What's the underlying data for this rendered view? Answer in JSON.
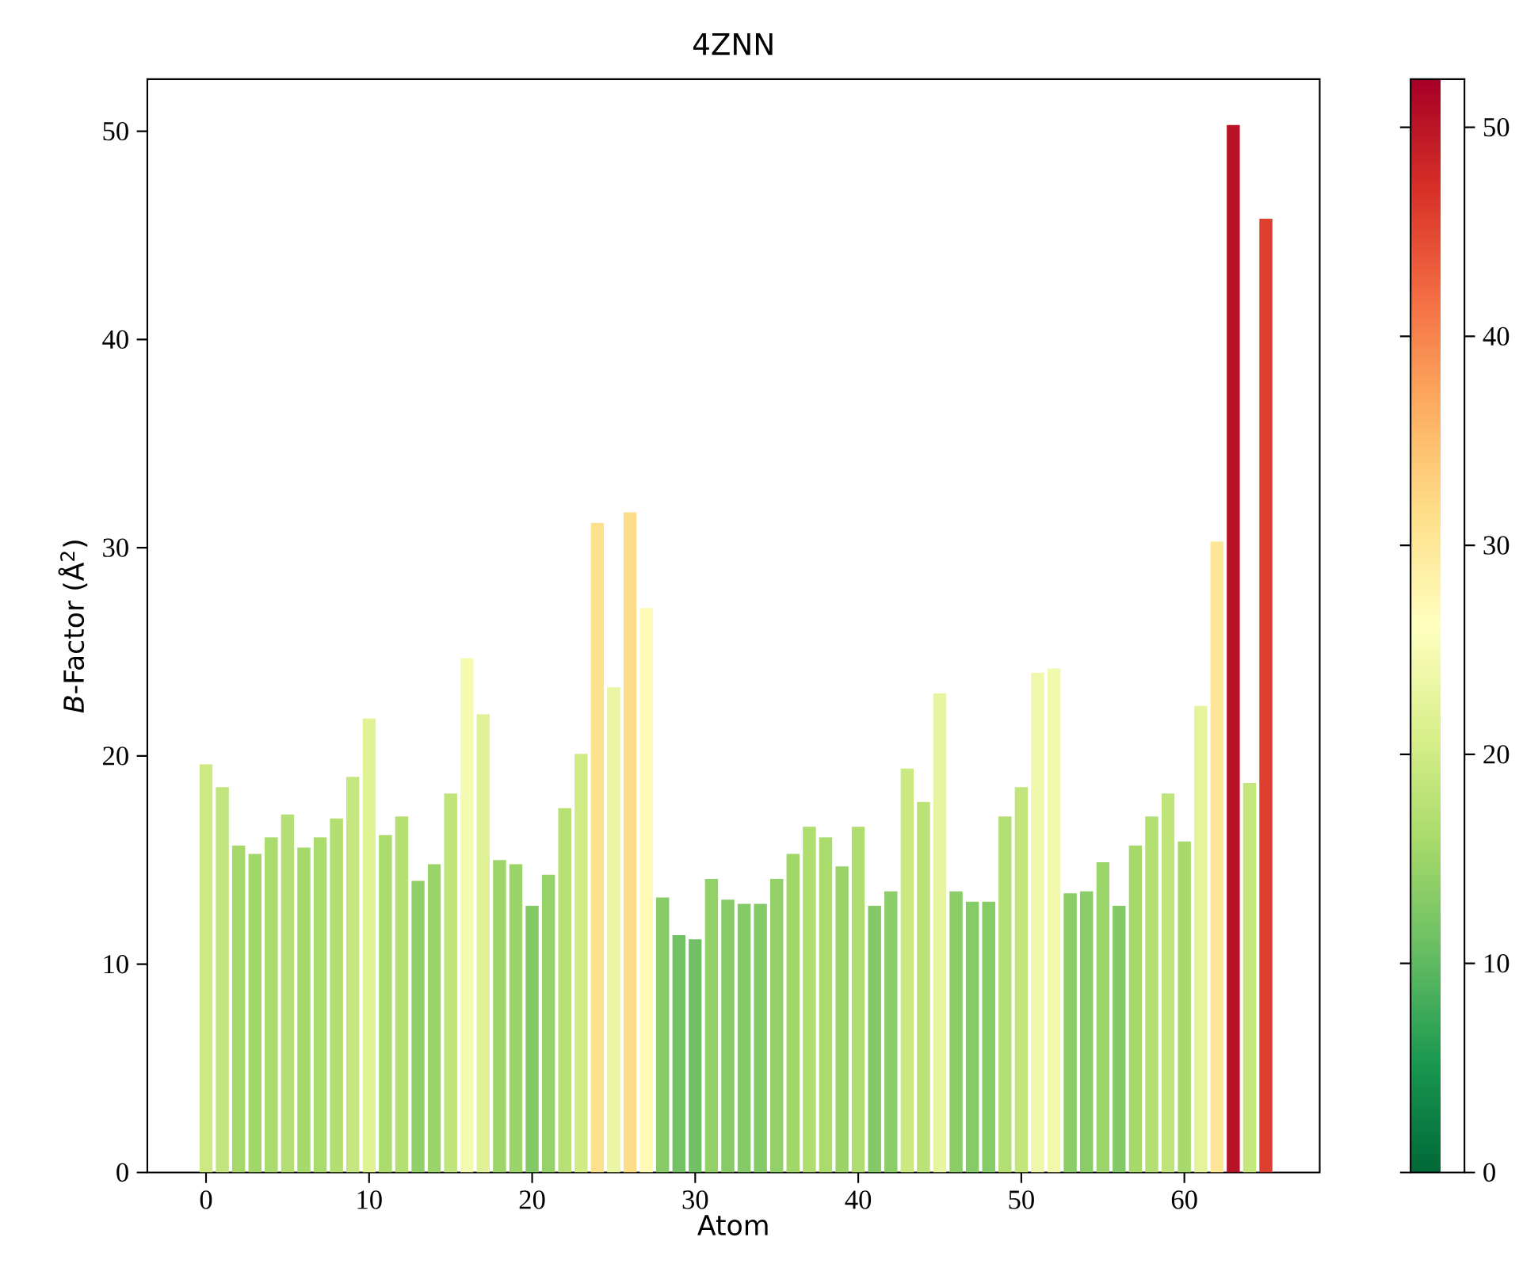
{
  "chart_data": {
    "type": "bar",
    "title": "4ZNN",
    "xlabel": "Atom",
    "ylabel": "*B*-Factor (Å$^{2}$)",
    "x": [
      0,
      1,
      2,
      3,
      4,
      5,
      6,
      7,
      8,
      9,
      10,
      11,
      12,
      13,
      14,
      15,
      16,
      17,
      18,
      19,
      20,
      21,
      22,
      23,
      24,
      25,
      26,
      27,
      28,
      29,
      30,
      31,
      32,
      33,
      34,
      35,
      36,
      37,
      38,
      39,
      40,
      41,
      42,
      43,
      44,
      45,
      46,
      47,
      48,
      49,
      50,
      51,
      52,
      53,
      54,
      55,
      56,
      57,
      58,
      59,
      60,
      61,
      62,
      63,
      64,
      65
    ],
    "values": [
      19.6,
      18.5,
      15.7,
      15.3,
      16.1,
      17.2,
      15.6,
      16.1,
      17.0,
      19.0,
      21.8,
      16.2,
      17.1,
      14.0,
      14.8,
      18.2,
      24.7,
      22.0,
      15.0,
      14.8,
      12.8,
      14.3,
      17.5,
      20.1,
      31.2,
      23.3,
      31.7,
      27.1,
      13.2,
      11.4,
      11.2,
      14.1,
      13.1,
      12.9,
      12.9,
      14.1,
      15.3,
      16.6,
      16.1,
      14.7,
      16.6,
      12.8,
      13.5,
      19.4,
      17.8,
      23.0,
      13.5,
      13.0,
      13.0,
      17.1,
      18.5,
      24.0,
      24.2,
      13.4,
      13.5,
      14.9,
      12.8,
      15.7,
      17.1,
      18.2,
      15.9,
      22.4,
      30.3,
      50.3,
      18.7,
      45.8
    ],
    "cvalues": [
      19.6,
      18.5,
      15.7,
      15.3,
      16.1,
      17.2,
      15.6,
      16.1,
      17.0,
      19.0,
      21.8,
      16.2,
      17.1,
      14.0,
      14.8,
      18.2,
      24.7,
      22.0,
      15.0,
      14.8,
      12.8,
      14.3,
      17.5,
      20.1,
      31.2,
      23.3,
      31.7,
      27.1,
      13.2,
      11.4,
      11.2,
      14.1,
      13.1,
      12.9,
      12.9,
      14.1,
      15.3,
      16.6,
      16.1,
      14.7,
      16.6,
      12.8,
      13.5,
      19.4,
      17.8,
      23.0,
      13.5,
      13.0,
      13.0,
      17.1,
      18.5,
      24.0,
      24.2,
      13.4,
      13.5,
      14.9,
      12.8,
      15.7,
      17.1,
      18.2,
      15.9,
      22.4,
      30.3,
      50.3,
      18.7,
      45.8
    ],
    "xlim": [
      -3.6,
      68.3
    ],
    "xticks": [
      0,
      10,
      20,
      30,
      40,
      50,
      60
    ],
    "ylim": [
      0,
      52.5
    ],
    "yticks": [
      0,
      10,
      20,
      30,
      40,
      50
    ],
    "clim": [
      0,
      52.3
    ],
    "cticks": [
      0,
      10,
      20,
      30,
      40,
      50
    ]
  }
}
